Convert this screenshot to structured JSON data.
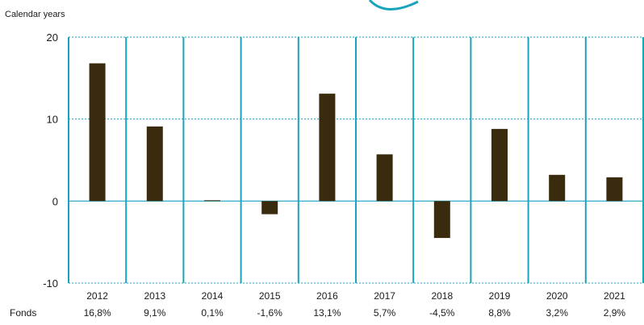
{
  "chart_data": {
    "type": "bar",
    "subtitle": "Calendar years",
    "categories": [
      "2012",
      "2013",
      "2014",
      "2015",
      "2016",
      "2017",
      "2018",
      "2019",
      "2020",
      "2021"
    ],
    "series": [
      {
        "name": "Fonds",
        "values": [
          16.8,
          9.1,
          0.1,
          -1.6,
          13.1,
          5.7,
          -4.5,
          8.8,
          3.2,
          2.9
        ]
      }
    ],
    "data_labels": [
      "16,8%",
      "9,1%",
      "0,1%",
      "-1,6%",
      "13,1%",
      "5,7%",
      "-4,5%",
      "8,8%",
      "3,2%",
      "2,9%"
    ],
    "ylim": [
      -10,
      20
    ],
    "yticks": [
      -10,
      0,
      10,
      20
    ],
    "grid": true,
    "colors": {
      "bar": "#3a2a0e",
      "grid": "#1aa3bd",
      "text": "#1a1a1a"
    }
  }
}
